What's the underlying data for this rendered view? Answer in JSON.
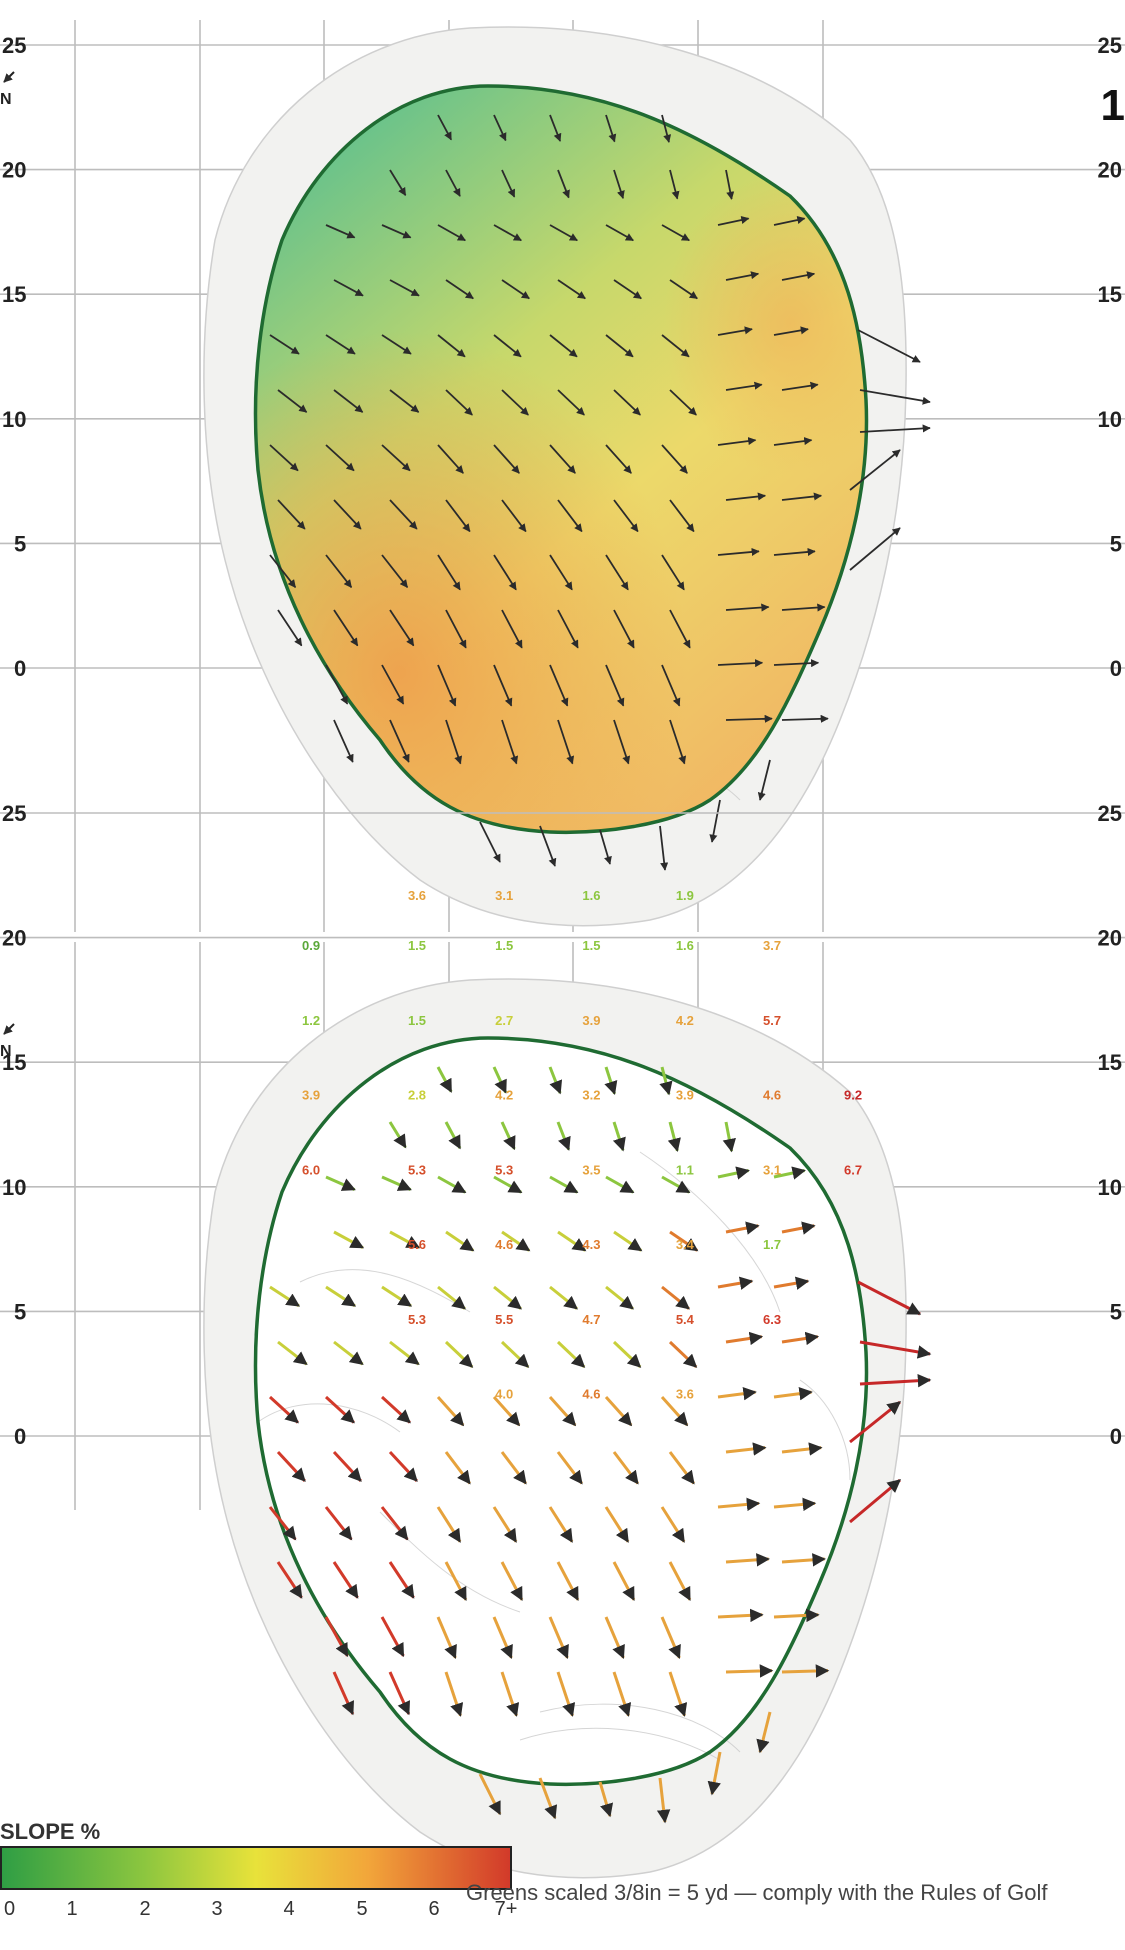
{
  "hole_number": "1",
  "north_label": "N",
  "grid": {
    "y_ticks": [
      "0",
      "5",
      "10",
      "15",
      "20",
      "25"
    ]
  },
  "top_panel": {
    "name": "green-slope-direction-map"
  },
  "bottom_panel": {
    "name": "green-slope-percent-map",
    "slope_readings": [
      {
        "value": "3.6",
        "color": "#e6a23c",
        "gx": 3.6,
        "gy": 21.5
      },
      {
        "value": "3.1",
        "color": "#e6a23c",
        "gx": 5.0,
        "gy": 21.5
      },
      {
        "value": "1.6",
        "color": "#8cc63f",
        "gx": 6.4,
        "gy": 21.5
      },
      {
        "value": "1.9",
        "color": "#8cc63f",
        "gx": 7.9,
        "gy": 21.5
      },
      {
        "value": "0.9",
        "color": "#5aa83a",
        "gx": 1.9,
        "gy": 19.5
      },
      {
        "value": "1.5",
        "color": "#8cc63f",
        "gx": 3.6,
        "gy": 19.5
      },
      {
        "value": "1.5",
        "color": "#8cc63f",
        "gx": 5.0,
        "gy": 19.5
      },
      {
        "value": "1.5",
        "color": "#8cc63f",
        "gx": 6.4,
        "gy": 19.5
      },
      {
        "value": "1.6",
        "color": "#8cc63f",
        "gx": 7.9,
        "gy": 19.5
      },
      {
        "value": "3.7",
        "color": "#e6a23c",
        "gx": 9.3,
        "gy": 19.5
      },
      {
        "value": "1.2",
        "color": "#8cc63f",
        "gx": 1.9,
        "gy": 16.5
      },
      {
        "value": "1.5",
        "color": "#8cc63f",
        "gx": 3.6,
        "gy": 16.5
      },
      {
        "value": "2.7",
        "color": "#c8cf3a",
        "gx": 5.0,
        "gy": 16.5
      },
      {
        "value": "3.9",
        "color": "#e6a23c",
        "gx": 6.4,
        "gy": 16.5
      },
      {
        "value": "4.2",
        "color": "#e6a23c",
        "gx": 7.9,
        "gy": 16.5
      },
      {
        "value": "5.7",
        "color": "#d5502c",
        "gx": 9.3,
        "gy": 16.5
      },
      {
        "value": "3.9",
        "color": "#e6a23c",
        "gx": 1.9,
        "gy": 13.5
      },
      {
        "value": "2.8",
        "color": "#c8cf3a",
        "gx": 3.6,
        "gy": 13.5
      },
      {
        "value": "4.2",
        "color": "#e6a23c",
        "gx": 5.0,
        "gy": 13.5
      },
      {
        "value": "3.2",
        "color": "#e6a23c",
        "gx": 6.4,
        "gy": 13.5
      },
      {
        "value": "3.9",
        "color": "#e6a23c",
        "gx": 7.9,
        "gy": 13.5
      },
      {
        "value": "4.6",
        "color": "#e07b2e",
        "gx": 9.3,
        "gy": 13.5
      },
      {
        "value": "9.2",
        "color": "#c62828",
        "gx": 10.6,
        "gy": 13.5
      },
      {
        "value": "6.0",
        "color": "#d5502c",
        "gx": 1.9,
        "gy": 10.5
      },
      {
        "value": "5.3",
        "color": "#d5502c",
        "gx": 3.6,
        "gy": 10.5
      },
      {
        "value": "5.3",
        "color": "#d5502c",
        "gx": 5.0,
        "gy": 10.5
      },
      {
        "value": "3.5",
        "color": "#e6a23c",
        "gx": 6.4,
        "gy": 10.5
      },
      {
        "value": "1.1",
        "color": "#8cc63f",
        "gx": 7.9,
        "gy": 10.5
      },
      {
        "value": "3.1",
        "color": "#e6a23c",
        "gx": 9.3,
        "gy": 10.5
      },
      {
        "value": "6.7",
        "color": "#d23a2a",
        "gx": 10.6,
        "gy": 10.5
      },
      {
        "value": "5.6",
        "color": "#d5502c",
        "gx": 3.6,
        "gy": 7.5
      },
      {
        "value": "4.6",
        "color": "#e07b2e",
        "gx": 5.0,
        "gy": 7.5
      },
      {
        "value": "4.3",
        "color": "#e07b2e",
        "gx": 6.4,
        "gy": 7.5
      },
      {
        "value": "3.4",
        "color": "#e6a23c",
        "gx": 7.9,
        "gy": 7.5
      },
      {
        "value": "1.7",
        "color": "#8cc63f",
        "gx": 9.3,
        "gy": 7.5
      },
      {
        "value": "5.3",
        "color": "#d5502c",
        "gx": 3.6,
        "gy": 4.5
      },
      {
        "value": "5.5",
        "color": "#d5502c",
        "gx": 5.0,
        "gy": 4.5
      },
      {
        "value": "4.7",
        "color": "#e07b2e",
        "gx": 6.4,
        "gy": 4.5
      },
      {
        "value": "5.4",
        "color": "#d5502c",
        "gx": 7.9,
        "gy": 4.5
      },
      {
        "value": "6.3",
        "color": "#d23a2a",
        "gx": 9.3,
        "gy": 4.5
      },
      {
        "value": "4.0",
        "color": "#e6a23c",
        "gx": 5.0,
        "gy": 1.5
      },
      {
        "value": "4.6",
        "color": "#e07b2e",
        "gx": 6.4,
        "gy": 1.5
      },
      {
        "value": "3.6",
        "color": "#e6a23c",
        "gx": 7.9,
        "gy": 1.5
      }
    ]
  },
  "legend": {
    "title": "SLOPE %",
    "ticks": [
      "0",
      "1",
      "2",
      "3",
      "4",
      "5",
      "6",
      "7+"
    ],
    "colors": [
      "#2f9e44",
      "#8cc63f",
      "#e8e23a",
      "#f2a63a",
      "#d23a2a"
    ]
  },
  "footer_note": "Greens scaled 3/8in = 5 yd — comply with the Rules of Golf"
}
